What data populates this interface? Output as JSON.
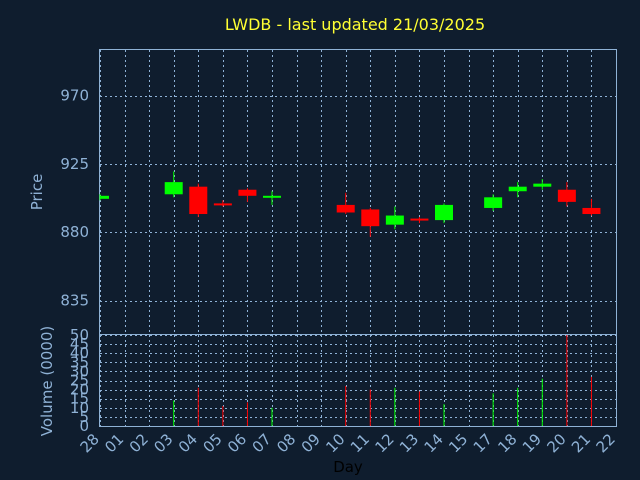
{
  "chart_data": {
    "type": "candlestick",
    "title": "LWDB - last updated 21/03/2025",
    "price_axis": {
      "label": "Price",
      "ticks": [
        835,
        880,
        925,
        970
      ],
      "range": [
        813,
        1000
      ]
    },
    "volume_axis": {
      "label": "Volume (0000)",
      "ticks": [
        0,
        5,
        10,
        15,
        20,
        25,
        30,
        35,
        40,
        45,
        50
      ],
      "range": [
        0,
        50
      ]
    },
    "xlabel": "Day",
    "days": [
      "28",
      "01",
      "02",
      "03",
      "04",
      "05",
      "06",
      "07",
      "08",
      "09",
      "10",
      "11",
      "12",
      "13",
      "14",
      "15",
      "17",
      "18",
      "19",
      "20",
      "21",
      "22"
    ],
    "grid": true,
    "colors": {
      "up": "#00ff00",
      "down": "#ff0000",
      "title": "#ffff33",
      "axis": "#8fb2d6",
      "background": "#0f1d2e"
    },
    "candles": [
      {
        "day": "28",
        "open": 902,
        "close": 904,
        "high": 905,
        "low": 901,
        "volume": 0
      },
      {
        "day": "03",
        "open": 905,
        "close": 913,
        "high": 920,
        "low": 903,
        "volume": 14
      },
      {
        "day": "04",
        "open": 910,
        "close": 892,
        "high": 912,
        "low": 890,
        "volume": 21
      },
      {
        "day": "05",
        "open": 899,
        "close": 898,
        "high": 901,
        "low": 897,
        "volume": 11
      },
      {
        "day": "06",
        "open": 908,
        "close": 904,
        "high": 909,
        "low": 900,
        "volume": 13
      },
      {
        "day": "07",
        "open": 903,
        "close": 904,
        "high": 907,
        "low": 898,
        "volume": 10
      },
      {
        "day": "10",
        "open": 898,
        "close": 893,
        "high": 906,
        "low": 892,
        "volume": 22
      },
      {
        "day": "11",
        "open": 895,
        "close": 884,
        "high": 896,
        "low": 877,
        "volume": 20
      },
      {
        "day": "12",
        "open": 885,
        "close": 891,
        "high": 897,
        "low": 882,
        "volume": 21
      },
      {
        "day": "13",
        "open": 889,
        "close": 888,
        "high": 890,
        "low": 886,
        "volume": 19
      },
      {
        "day": "14",
        "open": 888,
        "close": 898,
        "high": 899,
        "low": 886,
        "volume": 12
      },
      {
        "day": "17",
        "open": 896,
        "close": 903,
        "high": 905,
        "low": 894,
        "volume": 18
      },
      {
        "day": "18",
        "open": 907,
        "close": 910,
        "high": 913,
        "low": 903,
        "volume": 21
      },
      {
        "day": "19",
        "open": 910,
        "close": 912,
        "high": 915,
        "low": 908,
        "volume": 26
      },
      {
        "day": "20",
        "open": 908,
        "close": 900,
        "high": 913,
        "low": 897,
        "volume": 50
      },
      {
        "day": "21",
        "open": 896,
        "close": 892,
        "high": 902,
        "low": 891,
        "volume": 27
      }
    ]
  }
}
